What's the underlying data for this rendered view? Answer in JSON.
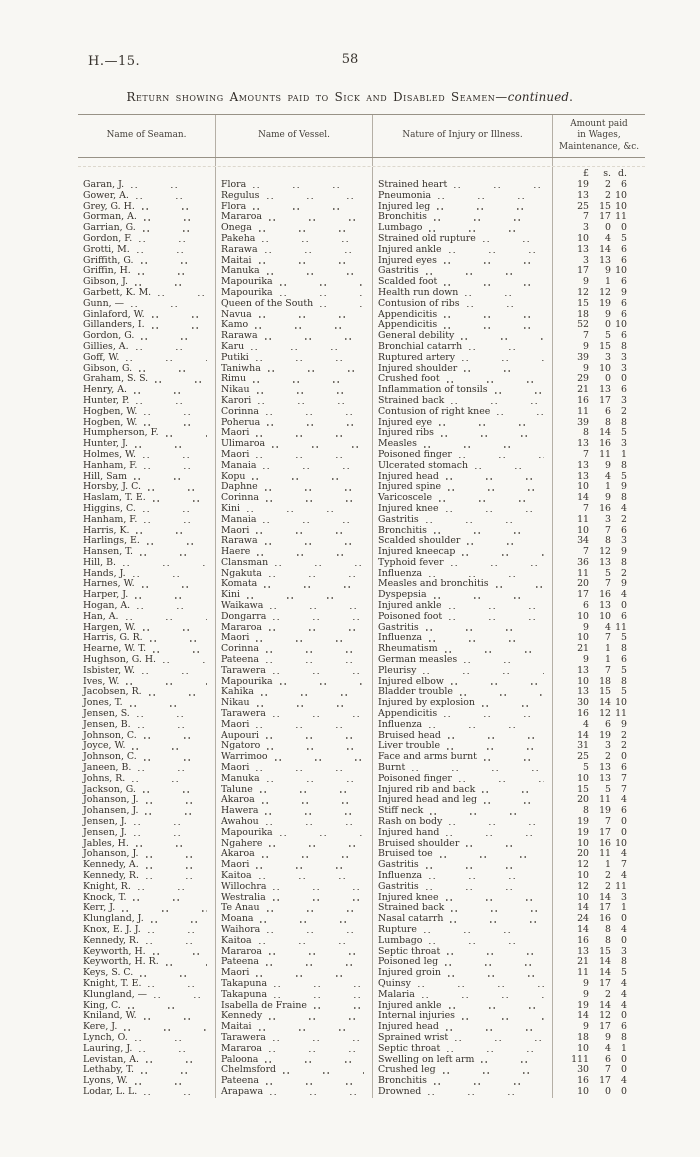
{
  "page": {
    "doc_ref": "H.—15.",
    "number": "58"
  },
  "title": {
    "main": "Return showing Amounts paid to Sick and Disabled Seamen—",
    "emphasis": "continued",
    "period": "."
  },
  "table": {
    "columns": [
      "Name of Seaman.",
      "Name of Vessel.",
      "Nature of Injury or Illness."
    ],
    "amount_header_lines": [
      "Amount paid",
      "in Wages,",
      "Maintenance, &c."
    ],
    "currency": {
      "pounds": "£",
      "shillings": "s.",
      "pence": "d."
    },
    "rows": [
      [
        "Garan, J.",
        "Flora",
        "Strained heart",
        "19",
        "2",
        "6"
      ],
      [
        "Gower, A.",
        "Regulus",
        "Pneumonia",
        "13",
        "2",
        "10"
      ],
      [
        "Grey, G. H.",
        "Flora",
        "Injured leg",
        "25",
        "15",
        "10"
      ],
      [
        "Gorman, A.",
        "Mararoa",
        "Bronchitis",
        "7",
        "17",
        "11"
      ],
      [
        "Garrian, G.",
        "Onega",
        "Lumbago",
        "3",
        "0",
        "0"
      ],
      [
        "Gordon, F.",
        "Pakeha",
        "Strained old rupture",
        "10",
        "4",
        "5"
      ],
      [
        "Grotti, M.",
        "Rarawa",
        "Injured ankle",
        "13",
        "14",
        "6"
      ],
      [
        "Griffith, G.",
        "Maitai",
        "Injured eyes",
        "3",
        "13",
        "6"
      ],
      [
        "Griffin, H.",
        "Manuka",
        "Gastritis",
        "17",
        "9",
        "10"
      ],
      [
        "Gibson, J.",
        "Mapourika",
        "Scalded foot",
        "9",
        "1",
        "6"
      ],
      [
        "Garbett, K. M.",
        "Mapourika",
        "Health run down",
        "12",
        "12",
        "9"
      ],
      [
        "Gunn, —",
        "Queen of the South",
        "Contusion of ribs",
        "15",
        "19",
        "6"
      ],
      [
        "Ginlaford, W.",
        "Navua",
        "Appendicitis",
        "18",
        "9",
        "6"
      ],
      [
        "Gillanders, I.",
        "Kamo",
        "Appendicitis",
        "52",
        "0",
        "10"
      ],
      [
        "Gordon, G.",
        "Rarawa",
        "General debility",
        "7",
        "5",
        "6"
      ],
      [
        "Gillies, A.",
        "Karu",
        "Bronchial catarrh",
        "9",
        "15",
        "8"
      ],
      [
        "Goff, W.",
        "Putiki",
        "Ruptured artery",
        "39",
        "3",
        "3"
      ],
      [
        "Gibson, G.",
        "Taniwha",
        "Injured shoulder",
        "9",
        "10",
        "3"
      ],
      [
        "Graham, S. S.",
        "Rimu",
        "Crushed foot",
        "29",
        "0",
        "0"
      ],
      [
        "Henry, A.",
        "Nikau",
        "Inflammation of tonsils",
        "21",
        "13",
        "6"
      ],
      [
        "Hunter, P.",
        "Karori",
        "Strained back",
        "16",
        "17",
        "3"
      ],
      [
        "Hogben, W.",
        "Corinna",
        "Contusion of right knee",
        "11",
        "6",
        "2"
      ],
      [
        "Hogben, W.",
        "Poherua",
        "Injured eye",
        "39",
        "8",
        "8"
      ],
      [
        "Humpherson, F.",
        "Maori",
        "Injured ribs",
        "8",
        "14",
        "5"
      ],
      [
        "Hunter, J.",
        "Ulimaroa",
        "Measles",
        "13",
        "16",
        "3"
      ],
      [
        "Holmes, W.",
        "Maori",
        "Poisoned finger",
        "7",
        "11",
        "1"
      ],
      [
        "Hanham, F.",
        "Manaia",
        "Ulcerated stomach",
        "13",
        "9",
        "8"
      ],
      [
        "Hill, Sam",
        "Kopu",
        "Injured head",
        "13",
        "4",
        "5"
      ],
      [
        "Horsby, J. C.",
        "Daphne",
        "Injured spine",
        "10",
        "1",
        "9"
      ],
      [
        "Haslam, T. E.",
        "Corinna",
        "Varicoscele",
        "14",
        "9",
        "8"
      ],
      [
        "Higgins, C.",
        "Kini",
        "Injured knee",
        "7",
        "16",
        "4"
      ],
      [
        "Hanham, F.",
        "Manaia",
        "Gastritis",
        "11",
        "3",
        "2"
      ],
      [
        "Harris, K.",
        "Maori",
        "Bronchitis",
        "10",
        "7",
        "6"
      ],
      [
        "Harlings, E.",
        "Rarawa",
        "Scalded shoulder",
        "34",
        "8",
        "3"
      ],
      [
        "Hansen, T.",
        "Haere",
        "Injured kneecap",
        "7",
        "12",
        "9"
      ],
      [
        "Hill, B.",
        "Clansman",
        "Typhoid fever",
        "36",
        "13",
        "8"
      ],
      [
        "Hands, J.",
        "Ngakuta",
        "Influenza",
        "11",
        "5",
        "2"
      ],
      [
        "Harnes, W.",
        "Komata",
        "Measles and bronchitis",
        "20",
        "7",
        "9"
      ],
      [
        "Harper, J.",
        "Kini",
        "Dyspepsia",
        "17",
        "16",
        "4"
      ],
      [
        "Hogan, A.",
        "Waikawa",
        "Injured ankle",
        "6",
        "13",
        "0"
      ],
      [
        "Han, A.",
        "Dongarra",
        "Poisoned foot",
        "10",
        "10",
        "6"
      ],
      [
        "Hargen, W.",
        "Mararoa",
        "Gastritis",
        "9",
        "4",
        "11"
      ],
      [
        "Harris, G. R.",
        "Maori",
        "Influenza",
        "10",
        "7",
        "5"
      ],
      [
        "Hearne, W. T.",
        "Corinna",
        "Rheumatism",
        "21",
        "1",
        "8"
      ],
      [
        "Hughson, G. H.",
        "Pateena",
        "German measles",
        "9",
        "1",
        "6"
      ],
      [
        "Isbister, W.",
        "Tarawera",
        "Pleurisy",
        "13",
        "7",
        "5"
      ],
      [
        "Ives, W.",
        "Mapourika",
        "Injured elbow",
        "10",
        "18",
        "8"
      ],
      [
        "Jacobsen, R.",
        "Kahika",
        "Bladder trouble",
        "13",
        "15",
        "5"
      ],
      [
        "Jones, T.",
        "Nikau",
        "Injured by explosion",
        "30",
        "14",
        "10"
      ],
      [
        "Jensen, S.",
        "Tarawera",
        "Appendicitis",
        "16",
        "12",
        "11"
      ],
      [
        "Jensen, B.",
        "Maori",
        "Influenza",
        "4",
        "6",
        "9"
      ],
      [
        "Johnson, C.",
        "Aupouri",
        "Bruised head",
        "14",
        "19",
        "2"
      ],
      [
        "Joyce, W.",
        "Ngatoro",
        "Liver trouble",
        "31",
        "3",
        "2"
      ],
      [
        "Johnson, C.",
        "Warrimoo",
        "Face and arms burnt",
        "25",
        "2",
        "0"
      ],
      [
        "Janeen, B.",
        "Maori",
        "Burnt",
        "5",
        "13",
        "6"
      ],
      [
        "Johns, R.",
        "Manuka",
        "Poisoned finger",
        "10",
        "13",
        "7"
      ],
      [
        "Jackson, G.",
        "Talune",
        "Injured rib and back",
        "15",
        "5",
        "7"
      ],
      [
        "Johanson, J.",
        "Akaroa",
        "Injured head and leg",
        "20",
        "11",
        "4"
      ],
      [
        "Johansen, J.",
        "Hawera",
        "Stiff neck",
        "8",
        "19",
        "6"
      ],
      [
        "Jensen, J.",
        "Awahou",
        "Rash on body",
        "19",
        "7",
        "0"
      ],
      [
        "Jensen, J.",
        "Mapourika",
        "Injured hand",
        "19",
        "17",
        "0"
      ],
      [
        "Jables, H.",
        "Ngahere",
        "Bruised shoulder",
        "10",
        "16",
        "10"
      ],
      [
        "Johanson, J.",
        "Akaroa",
        "Bruised toe",
        "20",
        "11",
        "4"
      ],
      [
        "Kennedy, A.",
        "Maori",
        "Gastritis",
        "12",
        "1",
        "7"
      ],
      [
        "Kennedy, R.",
        "Kaitoa",
        "Influenza",
        "10",
        "2",
        "4"
      ],
      [
        "Knight, R.",
        "Willochra",
        "Gastritis",
        "12",
        "2",
        "11"
      ],
      [
        "Knock, T.",
        "Westralia",
        "Injured knee",
        "10",
        "14",
        "3"
      ],
      [
        "Kerr, J.",
        "Te Anau",
        "Strained back",
        "14",
        "17",
        "1"
      ],
      [
        "Klungland, J.",
        "Moana",
        "Nasal catarrh",
        "24",
        "16",
        "0"
      ],
      [
        "Knox, E. J. J.",
        "Waihora",
        "Rupture",
        "14",
        "8",
        "4"
      ],
      [
        "Kennedy, R.",
        "Kaitoa",
        "Lumbago",
        "16",
        "8",
        "0"
      ],
      [
        "Keyworth, H.",
        "Mararoa",
        "Septic throat",
        "13",
        "15",
        "3"
      ],
      [
        "Keyworth, H. R.",
        "Pateena",
        "Poisoned leg",
        "21",
        "14",
        "8"
      ],
      [
        "Keys, S. C.",
        "Maori",
        "Injured groin",
        "11",
        "14",
        "5"
      ],
      [
        "Knight, T. E.",
        "Takapuna",
        "Quinsy",
        "9",
        "17",
        "4"
      ],
      [
        "Klungland, —",
        "Takapuna",
        "Malaria",
        "9",
        "2",
        "4"
      ],
      [
        "King, C.",
        "Isabella de Fraine",
        "Injured ankle",
        "19",
        "14",
        "4"
      ],
      [
        "Kniland, W.",
        "Kennedy",
        "Internal injuries",
        "14",
        "12",
        "0"
      ],
      [
        "Kere, J.",
        "Maitai",
        "Injured head",
        "9",
        "17",
        "6"
      ],
      [
        "Lynch, O.",
        "Tarawera",
        "Sprained wrist",
        "18",
        "9",
        "8"
      ],
      [
        "Lauring, J.",
        "Mararoa",
        "Septic throat",
        "10",
        "4",
        "1"
      ],
      [
        "Levistan, A.",
        "Paloona",
        "Swelling on left arm",
        "111",
        "6",
        "0"
      ],
      [
        "Lethaby, T.",
        "Chelmsford",
        "Crushed leg",
        "30",
        "7",
        "0"
      ],
      [
        "Lyons, W.",
        "Pateena",
        "Bronchitis",
        "16",
        "17",
        "4"
      ],
      [
        "Lodar, L. L.",
        "Arapawa",
        "Drowned",
        "10",
        "0",
        "0"
      ]
    ]
  }
}
